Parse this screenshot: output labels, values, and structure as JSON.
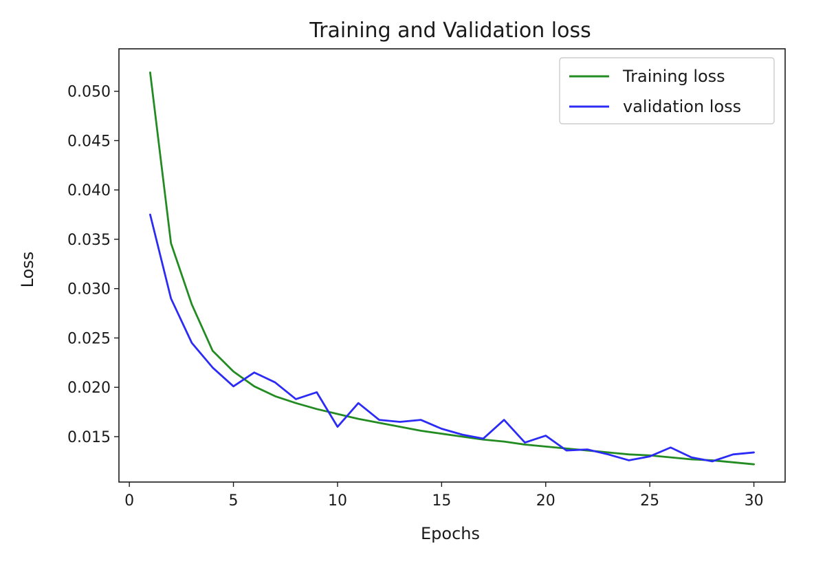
{
  "chart_data": {
    "type": "line",
    "title": "Training and Validation loss",
    "xlabel": "Epochs",
    "ylabel": "Loss",
    "xlim": [
      -0.5,
      31.5
    ],
    "ylim": [
      0.0104,
      0.0543
    ],
    "xticks": [
      0,
      5,
      10,
      15,
      20,
      25,
      30
    ],
    "xtick_labels": [
      "0",
      "5",
      "10",
      "15",
      "20",
      "25",
      "30"
    ],
    "yticks": [
      0.015,
      0.02,
      0.025,
      0.03,
      0.035,
      0.04,
      0.045,
      0.05
    ],
    "ytick_labels": [
      "0.015",
      "0.020",
      "0.025",
      "0.030",
      "0.035",
      "0.040",
      "0.045",
      "0.050"
    ],
    "grid": false,
    "legend_position": "top-right",
    "x": [
      1,
      2,
      3,
      4,
      5,
      6,
      7,
      8,
      9,
      10,
      11,
      12,
      13,
      14,
      15,
      16,
      17,
      18,
      19,
      20,
      21,
      22,
      23,
      24,
      25,
      26,
      27,
      28,
      29,
      30
    ],
    "series": [
      {
        "name": "Training loss",
        "color": "#228b22",
        "values": [
          0.0519,
          0.0346,
          0.0284,
          0.0237,
          0.0216,
          0.0201,
          0.0191,
          0.0184,
          0.0178,
          0.0173,
          0.0168,
          0.0164,
          0.016,
          0.0156,
          0.0153,
          0.015,
          0.0147,
          0.0145,
          0.0142,
          0.014,
          0.0138,
          0.0136,
          0.0134,
          0.0132,
          0.0131,
          0.0129,
          0.0127,
          0.0126,
          0.0124,
          0.0122
        ]
      },
      {
        "name": "validation loss",
        "color": "#2b2bf5",
        "values": [
          0.0375,
          0.029,
          0.0245,
          0.022,
          0.0201,
          0.0215,
          0.0205,
          0.0188,
          0.0195,
          0.016,
          0.0184,
          0.0167,
          0.0165,
          0.0167,
          0.0158,
          0.0152,
          0.0148,
          0.0167,
          0.0144,
          0.0151,
          0.0136,
          0.0137,
          0.0132,
          0.0126,
          0.013,
          0.0139,
          0.0129,
          0.0125,
          0.0132,
          0.0134
        ]
      }
    ]
  }
}
